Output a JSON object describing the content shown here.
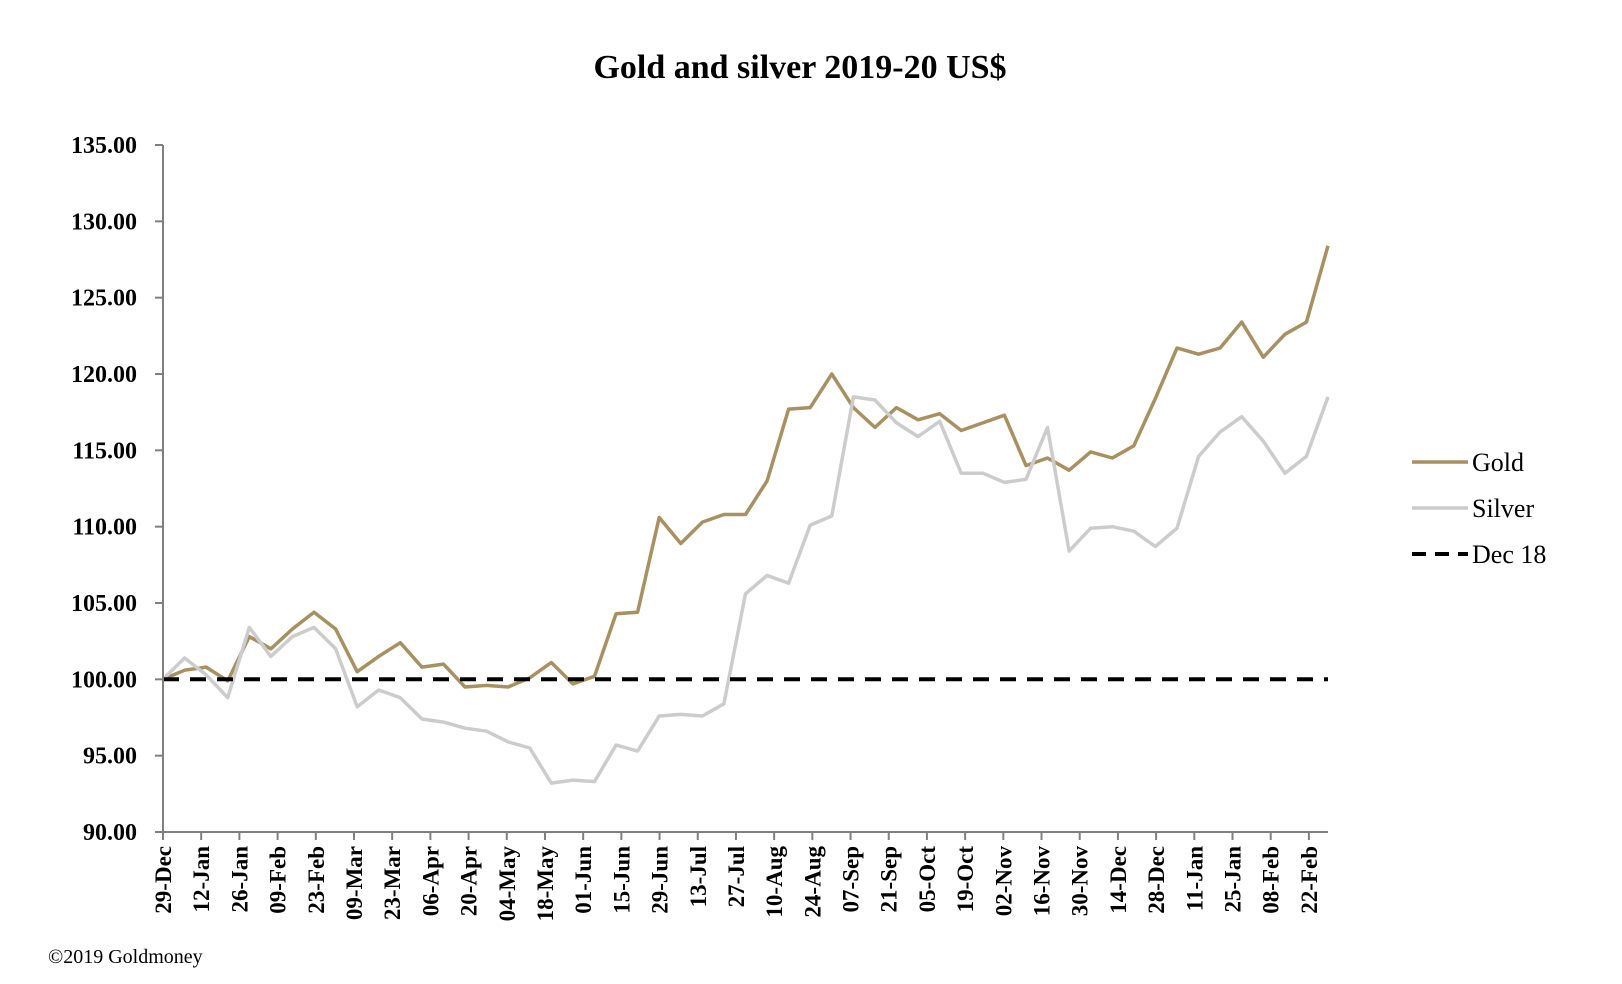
{
  "chart_data": {
    "type": "line",
    "title": "Gold and silver 2019-20  US$",
    "xlabel": "",
    "ylabel": "",
    "ylim": [
      90,
      135
    ],
    "yticks": [
      "90.00",
      "95.00",
      "100.00",
      "105.00",
      "110.00",
      "115.00",
      "120.00",
      "125.00",
      "130.00",
      "135.00"
    ],
    "xticks": [
      "29-Dec",
      "12-Jan",
      "26-Jan",
      "09-Feb",
      "23-Feb",
      "09-Mar",
      "23-Mar",
      "06-Apr",
      "20-Apr",
      "04-May",
      "18-May",
      "01-Jun",
      "15-Jun",
      "29-Jun",
      "13-Jul",
      "27-Jul",
      "10-Aug",
      "24-Aug",
      "07-Sep",
      "21-Sep",
      "05-Oct",
      "19-Oct",
      "02-Nov",
      "16-Nov",
      "30-Nov",
      "14-Dec",
      "28-Dec",
      "11-Jan",
      "25-Jan",
      "08-Feb",
      "22-Feb"
    ],
    "grid": false,
    "legend": "right",
    "series": [
      {
        "name": "Gold",
        "color": "#a89060",
        "style": "solid",
        "values": [
          100,
          100.6,
          100.8,
          99.9,
          102.8,
          102.0,
          103.3,
          104.4,
          103.3,
          100.5,
          101.5,
          102.4,
          100.8,
          101.0,
          99.5,
          99.6,
          99.5,
          100.1,
          101.1,
          99.7,
          100.2,
          104.3,
          104.4,
          110.6,
          108.9,
          110.3,
          110.8,
          110.8,
          113.0,
          117.7,
          117.8,
          120.0,
          117.8,
          116.5,
          117.8,
          117.0,
          117.4,
          116.3,
          116.8,
          117.3,
          114.0,
          114.5,
          113.7,
          114.9,
          114.5,
          115.3,
          118.4,
          121.7,
          121.3,
          121.7,
          123.4,
          121.1,
          122.6,
          123.4,
          128.4
        ]
      },
      {
        "name": "Silver",
        "color": "#cccccc",
        "style": "solid",
        "values": [
          100,
          101.4,
          100.3,
          98.8,
          103.4,
          101.5,
          102.8,
          103.4,
          102.0,
          98.2,
          99.3,
          98.8,
          97.4,
          97.2,
          96.8,
          96.6,
          95.9,
          95.5,
          93.2,
          93.4,
          93.3,
          95.7,
          95.3,
          97.6,
          97.7,
          97.6,
          98.4,
          105.6,
          106.8,
          106.3,
          110.1,
          110.7,
          118.5,
          118.3,
          116.8,
          115.9,
          116.9,
          113.5,
          113.5,
          112.9,
          113.1,
          116.5,
          108.4,
          109.9,
          110.0,
          109.7,
          108.7,
          109.9,
          114.6,
          116.2,
          117.2,
          115.6,
          113.5,
          114.6,
          118.5
        ]
      },
      {
        "name": "Dec 18",
        "color": "#000000",
        "style": "dashed",
        "values": [
          100,
          100
        ]
      }
    ]
  },
  "credit": "©2019 Goldmoney"
}
